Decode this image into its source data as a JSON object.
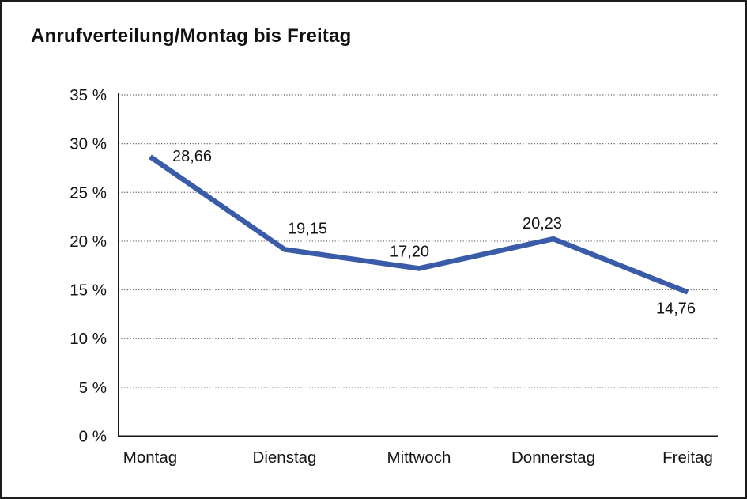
{
  "chart_data": {
    "type": "line",
    "title": "Anrufverteilung/Montag bis Freitag",
    "categories": [
      "Montag",
      "Dienstag",
      "Mittwoch",
      "Donnerstag",
      "Freitag"
    ],
    "values": [
      28.66,
      19.15,
      17.2,
      20.23,
      14.76
    ],
    "value_labels": [
      "28,66",
      "19,15",
      "17,20",
      "20,23",
      "14,76"
    ],
    "ylim": [
      0,
      35
    ],
    "ytick_step": 5,
    "ytick_labels": [
      "0 %",
      "5 %",
      "10 %",
      "15 %",
      "20 %",
      "25 %",
      "30 %",
      "35 %"
    ],
    "xlabel": "",
    "ylabel": "",
    "grid": "horizontal-dotted",
    "legend": "none",
    "line_color": "#3a5ba8",
    "text_color": "#141414",
    "background_color": "#ffffff",
    "border_color": "#1c1c1c"
  }
}
